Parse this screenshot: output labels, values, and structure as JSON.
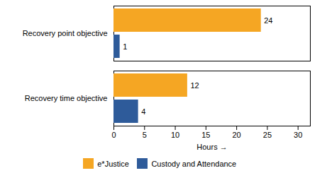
{
  "chart_data": {
    "type": "bar",
    "orientation": "horizontal",
    "categories": [
      "Recovery point objective",
      "Recovery time objective"
    ],
    "series": [
      {
        "name": "e*Justice",
        "color": "#F5A623",
        "values": [
          24,
          12
        ]
      },
      {
        "name": "Custody and Attendance",
        "color": "#2E5B9A",
        "values": [
          1,
          4
        ]
      }
    ],
    "xlabel": "Hours",
    "xlim": [
      0,
      32
    ],
    "xticks": [
      0,
      5,
      10,
      15,
      20,
      25,
      30
    ],
    "data_labels": true,
    "grid": false,
    "legend": "bottom"
  }
}
